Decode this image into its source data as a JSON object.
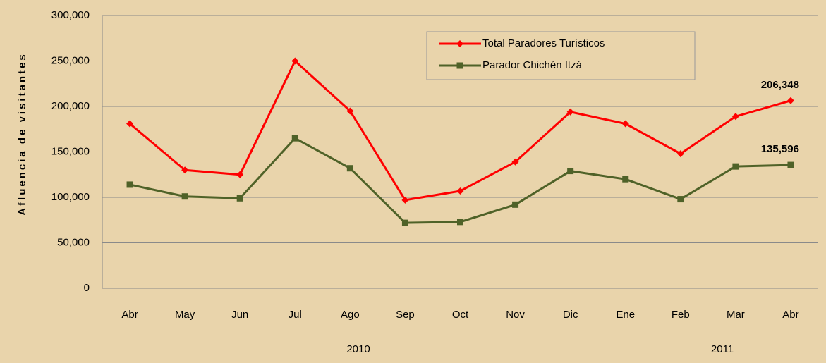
{
  "chart_data": {
    "type": "line",
    "y_label": "Afluencia de visitantes",
    "categories": [
      "Abr",
      "May",
      "Jun",
      "Jul",
      "Ago",
      "Sep",
      "Oct",
      "Nov",
      "Dic",
      "Ene",
      "Feb",
      "Mar",
      "Abr"
    ],
    "x_groups": [
      "2010",
      "2011"
    ],
    "series": [
      {
        "name": "Total Paradores Turísticos",
        "color": "#ff0000",
        "marker": "diamond",
        "values": [
          181000,
          130000,
          125000,
          250000,
          195000,
          97000,
          107000,
          139000,
          194000,
          181000,
          148000,
          189000,
          206348
        ],
        "value_labels": [
          null,
          null,
          null,
          null,
          null,
          null,
          null,
          null,
          null,
          null,
          null,
          null,
          "206,348"
        ]
      },
      {
        "name": "Parador Chichén Itzá",
        "color": "#4f6228",
        "marker": "square",
        "values": [
          114000,
          101000,
          99000,
          165000,
          132000,
          72000,
          73000,
          92000,
          129000,
          120000,
          98000,
          134000,
          135596
        ],
        "value_labels": [
          null,
          null,
          null,
          null,
          null,
          null,
          null,
          null,
          null,
          null,
          null,
          null,
          "135,596"
        ]
      }
    ],
    "ylim": [
      0,
      300000
    ],
    "yticks": [
      0,
      {
        "value": 50000,
        "label": "50,000"
      },
      {
        "value": 100000,
        "label": "100,000"
      },
      {
        "value": 150000,
        "label": "150,000"
      },
      {
        "value": 200000,
        "label": "200,000"
      },
      {
        "value": 250000,
        "label": "250,000"
      },
      {
        "value": 300000,
        "label": "300,000"
      }
    ],
    "grid": true,
    "legend": "top"
  }
}
